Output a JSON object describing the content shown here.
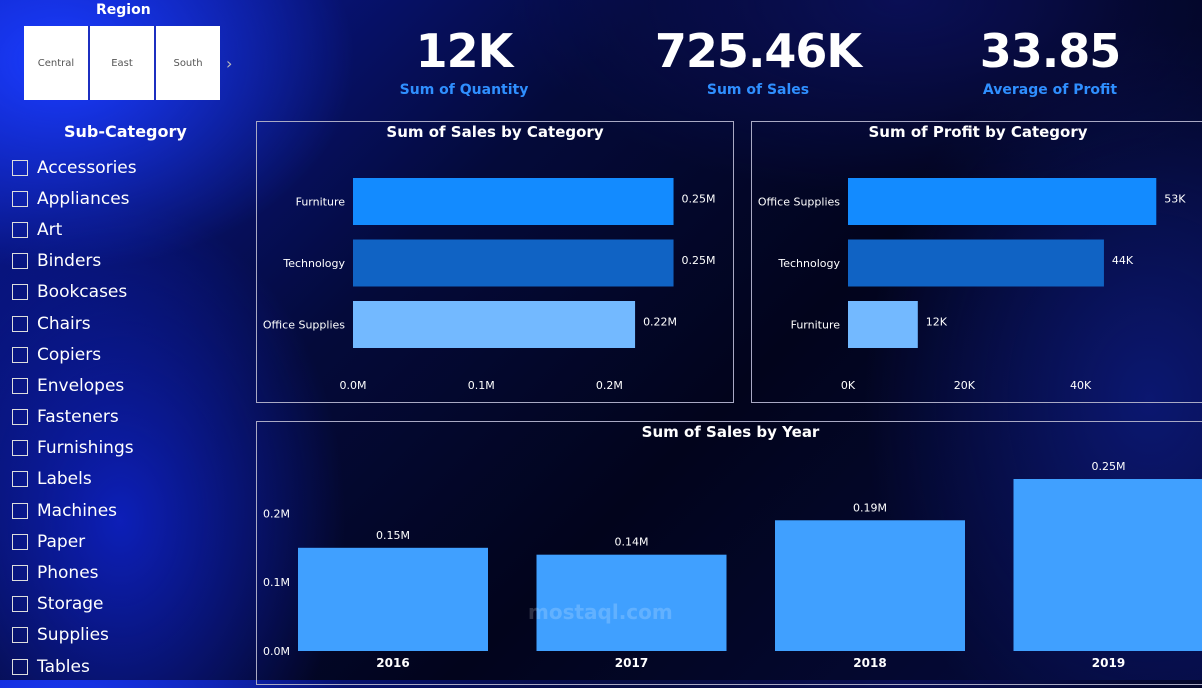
{
  "region": {
    "title": "Region",
    "options": [
      "Central",
      "East",
      "South"
    ],
    "more_icon": "chevron-right-icon"
  },
  "subcategory": {
    "title": "Sub-Category",
    "items": [
      "Accessories",
      "Appliances",
      "Art",
      "Binders",
      "Bookcases",
      "Chairs",
      "Copiers",
      "Envelopes",
      "Fasteners",
      "Furnishings",
      "Labels",
      "Machines",
      "Paper",
      "Phones",
      "Storage",
      "Supplies",
      "Tables"
    ]
  },
  "kpis": {
    "quantity": {
      "value": "12K",
      "label": "Sum of Quantity"
    },
    "sales": {
      "value": "725.46K",
      "label": "Sum of Sales"
    },
    "profit": {
      "value": "33.85",
      "label": "Average of Profit"
    }
  },
  "colors": {
    "dark": "#1063c4",
    "mid": "#138bff",
    "light": "#73b9ff",
    "year": "#40a0ff",
    "accent": "#2f8fff"
  },
  "watermark": "mostaql.com",
  "chart_data": [
    {
      "type": "bar",
      "orientation": "horizontal",
      "title": "Sum of Sales by Category",
      "categories": [
        "Furniture",
        "Technology",
        "Office Supplies"
      ],
      "values": [
        0.25,
        0.25,
        0.22
      ],
      "value_labels": [
        "0.25M",
        "0.25M",
        "0.22M"
      ],
      "bar_colors": [
        "#138bff",
        "#1063c4",
        "#73b9ff"
      ],
      "xlim": [
        0,
        0.28
      ],
      "ticks": [
        0,
        0.1,
        0.2
      ],
      "tick_labels": [
        "0.0M",
        "0.1M",
        "0.2M"
      ]
    },
    {
      "type": "bar",
      "orientation": "horizontal",
      "title": "Sum of Profit by Category",
      "categories": [
        "Office Supplies",
        "Technology",
        "Furniture"
      ],
      "values": [
        53,
        44,
        12
      ],
      "value_labels": [
        "53K",
        "44K",
        "12K"
      ],
      "bar_colors": [
        "#138bff",
        "#1063c4",
        "#73b9ff"
      ],
      "xlim": [
        0,
        60
      ],
      "ticks": [
        0,
        20,
        40
      ],
      "tick_labels": [
        "0K",
        "20K",
        "40K"
      ]
    },
    {
      "type": "bar",
      "orientation": "vertical",
      "title": "Sum of Sales by Year",
      "categories": [
        "2016",
        "2017",
        "2018",
        "2019"
      ],
      "values": [
        0.15,
        0.14,
        0.19,
        0.25
      ],
      "value_labels": [
        "0.15M",
        "0.14M",
        "0.19M",
        "0.25M"
      ],
      "bar_color": "#40a0ff",
      "ylim": [
        0,
        0.25
      ],
      "ticks": [
        0,
        0.1,
        0.2
      ],
      "tick_labels": [
        "0.0M",
        "0.1M",
        "0.2M"
      ]
    }
  ]
}
